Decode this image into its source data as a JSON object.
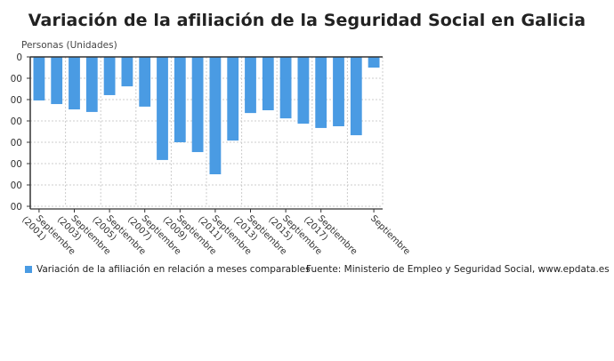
{
  "chart_data": {
    "type": "bar",
    "title": "Variación de la afiliación de la Seguridad Social en Galicia",
    "ylabel": "Personas (Unidades)",
    "y_tick_labels": [
      "0",
      "00",
      "00",
      "00",
      "00",
      "00",
      "00",
      "00"
    ],
    "y_unit_note_hidden": false,
    "ylim": [
      -7,
      0
    ],
    "grid": true,
    "categories": [
      "Septiembre (2001)",
      "",
      "Septiembre (2003)",
      "",
      "Septiembre (2005)",
      "",
      "Septiembre (2007)",
      "",
      "Septiembre (2009)",
      "",
      "Septiembre (2011)",
      "",
      "Septiembre (2013)",
      "",
      "Septiembre (2015)",
      "",
      "Septiembre (2017)",
      "",
      "",
      "Septiembre"
    ],
    "series": [
      {
        "name": "Variación de la afiliación en relación a meses comparables",
        "color": "#4a9be3",
        "values": [
          -2.04,
          -2.21,
          -2.46,
          -2.58,
          -1.79,
          -1.38,
          -2.33,
          -4.83,
          -4.0,
          -4.46,
          -5.5,
          -3.92,
          -2.63,
          -2.5,
          -2.88,
          -3.13,
          -3.33,
          -3.25,
          -3.67,
          -0.5
        ]
      }
    ],
    "legend": "bottom-left"
  },
  "source": "Fuente: Ministerio de Empleo y Seguridad Social, www.epdata.es"
}
